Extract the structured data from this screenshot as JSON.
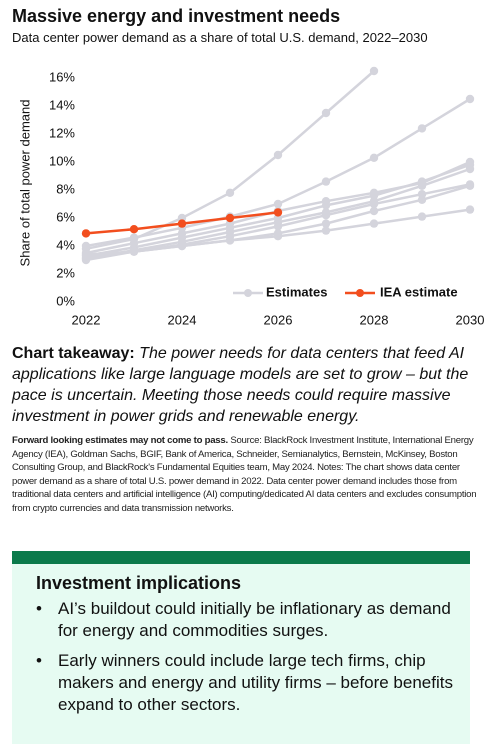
{
  "header": {
    "title": "Massive energy and investment needs",
    "subtitle": "Data center power demand as a share of total U.S. demand, 2022–2030"
  },
  "chart_data": {
    "type": "line",
    "y_label": "Share of total power demand",
    "x": [
      2022,
      2023,
      2024,
      2025,
      2026,
      2027,
      2028,
      2029,
      2030
    ],
    "xlim": [
      2022,
      2030
    ],
    "xticks": [
      2022,
      2024,
      2026,
      2028,
      2030
    ],
    "ylim": [
      0,
      17
    ],
    "yticks": [
      {
        "value": 0,
        "label": "0%"
      },
      {
        "value": 2,
        "label": "2%"
      },
      {
        "value": 4,
        "label": "4%"
      },
      {
        "value": 6,
        "label": "6%"
      },
      {
        "value": 8,
        "label": "8%"
      },
      {
        "value": 10,
        "label": "10%"
      },
      {
        "value": 12,
        "label": "12%"
      },
      {
        "value": 14,
        "label": "14%"
      },
      {
        "value": 16,
        "label": "16%"
      }
    ],
    "grid": false,
    "legend": "bottom-right",
    "series": [
      {
        "name": "Estimates",
        "color": "#d4d4dc",
        "lines": [
          {
            "values": [
              3.8,
              4.5,
              6.0,
              7.8,
              10.5,
              13.5,
              16.5,
              null,
              null
            ]
          },
          {
            "values": [
              4.0,
              4.6,
              5.3,
              6.1,
              7.0,
              8.6,
              10.3,
              12.4,
              14.5
            ]
          },
          {
            "values": [
              3.5,
              4.2,
              4.9,
              5.6,
              6.5,
              7.2,
              7.8,
              8.5,
              10.0
            ]
          },
          {
            "values": [
              3.3,
              3.9,
              4.6,
              5.3,
              6.0,
              6.9,
              7.6,
              8.6,
              9.8
            ]
          },
          {
            "values": [
              3.1,
              3.7,
              4.3,
              5.0,
              5.7,
              6.4,
              7.2,
              8.3,
              9.5
            ]
          },
          {
            "values": [
              3.0,
              3.6,
              4.1,
              4.7,
              5.4,
              6.2,
              7.0,
              7.7,
              8.4
            ]
          },
          {
            "values": [
              3.2,
              3.6,
              4.0,
              4.4,
              4.9,
              5.6,
              6.5,
              7.3,
              8.3
            ]
          },
          {
            "values": [
              3.4,
              3.6,
              4.0,
              4.4,
              4.7,
              5.1,
              5.6,
              6.1,
              6.6
            ]
          }
        ]
      },
      {
        "name": "IEA estimate",
        "color": "#f24e1e",
        "values": [
          4.9,
          5.2,
          5.6,
          6.0,
          6.4,
          null,
          null,
          null,
          null
        ]
      }
    ]
  },
  "takeaway": {
    "label": "Chart takeaway:",
    "text": "The power needs for data centers that feed AI applications like large language models are set to grow – but the pace is uncertain. Meeting those needs could require massive investment in power grids and renewable energy."
  },
  "footnote": {
    "lead": "Forward looking estimates may not come to pass.",
    "text": " Source: BlackRock Investment Institute, International Energy Agency (IEA), Goldman Sachs, BGIF, Bank of America, Schneider, Semianalytics, Bernstein, McKinsey, Boston Consulting Group, and BlackRock's Fundamental Equities team, May 2024. Notes: The chart shows data center power demand as a share of total U.S. power demand in 2022. Data center power demand includes those from traditional data centers and artificial intelligence (AI) computing/dedicated AI data centers and excludes consumption from crypto currencies and data transmission networks."
  },
  "implications": {
    "title": "Investment implications",
    "items": [
      "AI’s buildout could initially be inflationary as demand for energy and commodities surges.",
      "Early winners could include large tech firms, chip makers and energy and utility firms – before benefits expand to other sectors."
    ]
  }
}
